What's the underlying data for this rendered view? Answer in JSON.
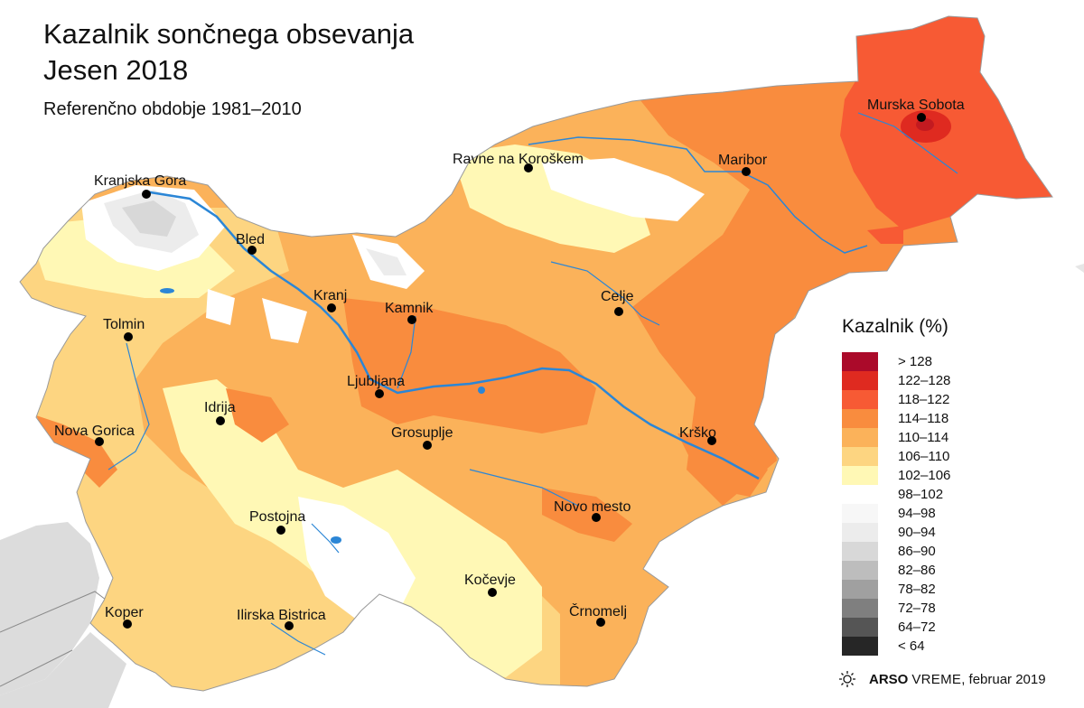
{
  "title": {
    "line1": "Kazalnik sončnega obsevanja",
    "line2": "Jesen 2018"
  },
  "subtitle": "Referenčno obdobje 1981–2010",
  "legend": {
    "title": "Kazalnik (%)",
    "classes": [
      {
        "label": "> 128",
        "color": "#ab0a2a"
      },
      {
        "label": "122–128",
        "color": "#df2a20"
      },
      {
        "label": "118–122",
        "color": "#f75a34"
      },
      {
        "label": "114–118",
        "color": "#f98c3e"
      },
      {
        "label": "110–114",
        "color": "#fbb25a"
      },
      {
        "label": "106–110",
        "color": "#fdd581"
      },
      {
        "label": "102–106",
        "color": "#fff8b5"
      },
      {
        "label": "98–102",
        "color": "#ffffff"
      },
      {
        "label": "94–98",
        "color": "#f7f7f7"
      },
      {
        "label": "90–94",
        "color": "#ececec"
      },
      {
        "label": "86–90",
        "color": "#d8d8d8"
      },
      {
        "label": "82–86",
        "color": "#bdbdbd"
      },
      {
        "label": "78–82",
        "color": "#a0a0a0"
      },
      {
        "label": "72–78",
        "color": "#7f7f7f"
      },
      {
        "label": "64–72",
        "color": "#555555"
      },
      {
        "label": "< 64",
        "color": "#262626"
      }
    ]
  },
  "cities": [
    {
      "name": "Murska Sobota"
    },
    {
      "name": "Maribor"
    },
    {
      "name": "Ravne na Koroškem"
    },
    {
      "name": "Kranjska Gora"
    },
    {
      "name": "Bled"
    },
    {
      "name": "Kranj"
    },
    {
      "name": "Kamnik"
    },
    {
      "name": "Celje"
    },
    {
      "name": "Tolmin"
    },
    {
      "name": "Ljubljana"
    },
    {
      "name": "Idrija"
    },
    {
      "name": "Nova Gorica"
    },
    {
      "name": "Grosuplje"
    },
    {
      "name": "Krško"
    },
    {
      "name": "Novo mesto"
    },
    {
      "name": "Postojna"
    },
    {
      "name": "Kočevje"
    },
    {
      "name": "Koper"
    },
    {
      "name": "Ilirska Bistrica"
    },
    {
      "name": "Črnomelj"
    }
  ],
  "credit": {
    "brand_bold": "ARSO",
    "brand_light": "VREME",
    "date": ", februar 2019",
    "icon": "sun-icon"
  },
  "colors": {
    "river": "#2b86d6",
    "neighbor_land": "#dcdcdc"
  }
}
